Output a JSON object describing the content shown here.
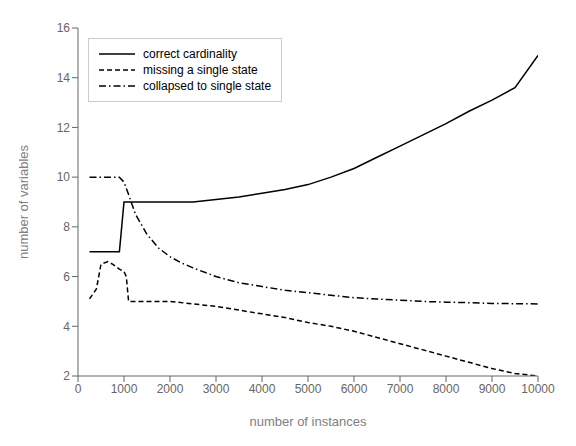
{
  "chart_data": {
    "type": "line",
    "xlabel": "number of instances",
    "ylabel": "number of variables",
    "xlim": [
      0,
      10000
    ],
    "ylim": [
      2,
      16
    ],
    "xticks": [
      0,
      1000,
      2000,
      3000,
      4000,
      5000,
      6000,
      7000,
      8000,
      9000,
      10000
    ],
    "yticks": [
      2,
      4,
      6,
      8,
      10,
      12,
      14,
      16
    ],
    "grid": false,
    "legend": "upper left",
    "series": [
      {
        "name": "correct cardinality",
        "color": "#000000",
        "line_style": "solid",
        "x": [
          250,
          500,
          750,
          900,
          1000,
          1050,
          1100,
          1500,
          2000,
          2500,
          3000,
          3500,
          4000,
          4500,
          5000,
          5500,
          6000,
          6500,
          7000,
          7500,
          8000,
          8500,
          9000,
          9500,
          10000
        ],
        "values": [
          7.0,
          7.0,
          7.0,
          7.0,
          9.0,
          9.0,
          9.0,
          9.0,
          9.0,
          9.0,
          9.1,
          9.2,
          9.35,
          9.5,
          9.7,
          10.0,
          10.35,
          10.8,
          11.25,
          11.7,
          12.15,
          12.65,
          13.1,
          13.6,
          14.9
        ]
      },
      {
        "name": "missing a single state",
        "color": "#000000",
        "line_style": "dashed",
        "x": [
          250,
          400,
          500,
          650,
          750,
          900,
          1000,
          1050,
          1100,
          1200,
          1500,
          2000,
          2500,
          3000,
          3500,
          4000,
          4500,
          5000,
          5500,
          6000,
          6500,
          7000,
          7500,
          8000,
          8500,
          9000,
          9500,
          10000
        ],
        "values": [
          5.1,
          5.5,
          6.5,
          6.6,
          6.5,
          6.3,
          6.2,
          6.0,
          5.0,
          5.0,
          5.0,
          5.0,
          4.9,
          4.8,
          4.65,
          4.5,
          4.35,
          4.15,
          4.0,
          3.8,
          3.55,
          3.3,
          3.05,
          2.8,
          2.55,
          2.3,
          2.1,
          2.0
        ]
      },
      {
        "name": "collapsed to single state",
        "color": "#000000",
        "line_style": "dashdot",
        "x": [
          250,
          500,
          750,
          900,
          1000,
          1100,
          1250,
          1500,
          1750,
          2000,
          2250,
          2500,
          3000,
          3500,
          4000,
          4500,
          5000,
          5500,
          6000,
          6500,
          7000,
          7500,
          8000,
          8500,
          9000,
          9500,
          10000
        ],
        "values": [
          10.0,
          10.0,
          10.0,
          10.0,
          9.8,
          9.3,
          8.5,
          7.7,
          7.15,
          6.8,
          6.55,
          6.35,
          6.0,
          5.75,
          5.6,
          5.45,
          5.35,
          5.25,
          5.15,
          5.1,
          5.05,
          5.0,
          4.97,
          4.95,
          4.92,
          4.91,
          4.9
        ]
      }
    ]
  }
}
